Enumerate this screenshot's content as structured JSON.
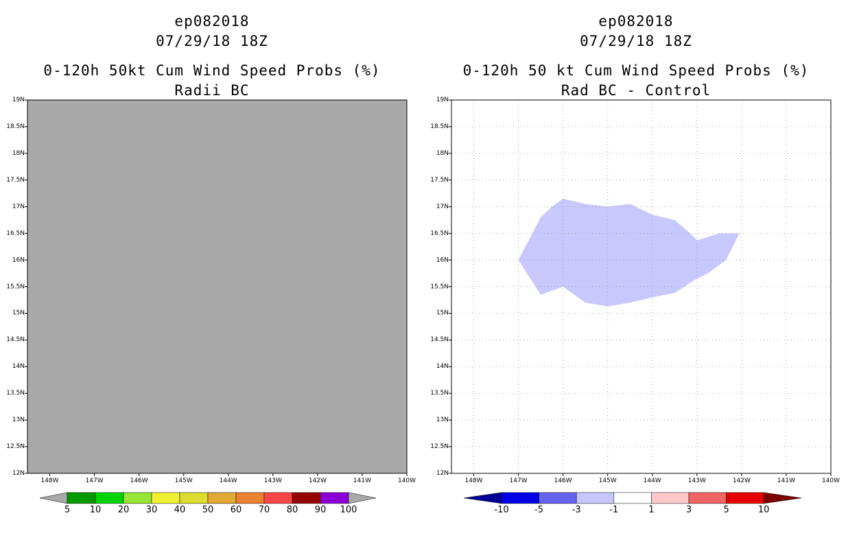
{
  "left_panel": {
    "storm_id": "ep082018",
    "datetime": "07/29/18 18Z",
    "title_line1": "0-120h 50kt Cum Wind Speed Probs (%)",
    "title_line2": "Radii BC",
    "fill_color": "#a9a9a9",
    "colorbar": {
      "labels": [
        "5",
        "10",
        "20",
        "30",
        "40",
        "50",
        "60",
        "70",
        "80",
        "90",
        "100"
      ],
      "colors": [
        "#009a00",
        "#00d500",
        "#96e633",
        "#f0f032",
        "#dcdc32",
        "#e1aa37",
        "#eb8232",
        "#fa4646",
        "#960000",
        "#8c00d7"
      ],
      "end_color": "#a9a9a9"
    }
  },
  "right_panel": {
    "storm_id": "ep082018",
    "datetime": "07/29/18 18Z",
    "title_line1": "0-120h 50 kt Cum Wind Speed Probs (%)",
    "title_line2": "Rad BC - Control",
    "field_color": "#c8c8ff",
    "field_value_range": "-3 to -1",
    "field_outline": [
      [
        -147.0,
        16.0
      ],
      [
        -146.5,
        16.8
      ],
      [
        -146.25,
        17.0
      ],
      [
        -146.0,
        17.15
      ],
      [
        -145.5,
        17.05
      ],
      [
        -145.0,
        17.0
      ],
      [
        -144.5,
        17.05
      ],
      [
        -144.0,
        16.85
      ],
      [
        -143.5,
        16.75
      ],
      [
        -143.15,
        16.5
      ],
      [
        -143.0,
        16.37
      ],
      [
        -142.5,
        16.5
      ],
      [
        -142.05,
        16.5
      ],
      [
        -142.35,
        16.0
      ],
      [
        -142.75,
        15.75
      ],
      [
        -143.0,
        15.65
      ],
      [
        -143.5,
        15.38
      ],
      [
        -144.0,
        15.3
      ],
      [
        -144.5,
        15.2
      ],
      [
        -145.0,
        15.13
      ],
      [
        -145.5,
        15.2
      ],
      [
        -146.0,
        15.5
      ],
      [
        -146.5,
        15.35
      ]
    ],
    "colorbar": {
      "labels": [
        "-10",
        "-5",
        "-3",
        "-1",
        "1",
        "3",
        "5",
        "10"
      ],
      "colors": [
        "#0000e6",
        "#6464f0",
        "#c8c8ff",
        "#ffffff",
        "#ffc8c8",
        "#f06464",
        "#e60000"
      ],
      "low_end_color": "#000096",
      "high_end_color": "#7d0000"
    }
  },
  "axes": {
    "lon_range": [
      -148.5,
      -140.0
    ],
    "lat_range": [
      12.0,
      19.0
    ],
    "lon_tick_labels": [
      "148W",
      "147W",
      "146W",
      "145W",
      "144W",
      "143W",
      "142W",
      "141W",
      "140W"
    ],
    "lon_tick_values": [
      -148,
      -147,
      -146,
      -145,
      -144,
      -143,
      -142,
      -141,
      -140
    ],
    "lat_tick_labels": [
      "12N",
      "12.5N",
      "13N",
      "13.5N",
      "14N",
      "14.5N",
      "15N",
      "15.5N",
      "16N",
      "16.5N",
      "17N",
      "17.5N",
      "18N",
      "18.5N",
      "19N"
    ],
    "lat_tick_values": [
      12,
      12.5,
      13,
      13.5,
      14,
      14.5,
      15,
      15.5,
      16,
      16.5,
      17,
      17.5,
      18,
      18.5,
      19
    ]
  }
}
